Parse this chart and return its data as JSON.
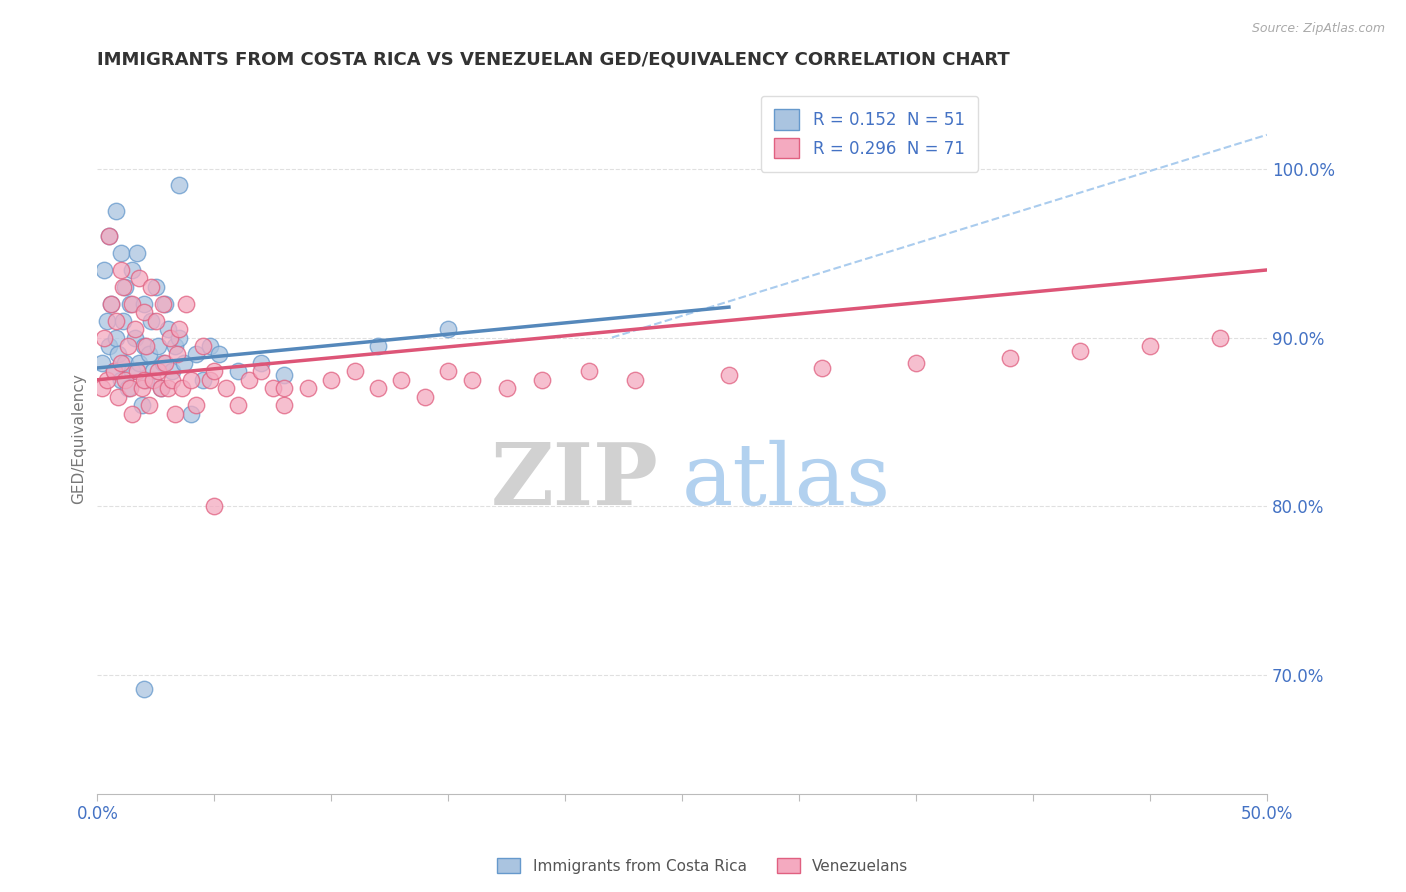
{
  "title": "IMMIGRANTS FROM COSTA RICA VS VENEZUELAN GED/EQUIVALENCY CORRELATION CHART",
  "source": "Source: ZipAtlas.com",
  "ylabel": "GED/Equivalency",
  "xlim": [
    0.0,
    0.5
  ],
  "ylim": [
    0.63,
    1.05
  ],
  "xticks": [
    0.0,
    0.05,
    0.1,
    0.15,
    0.2,
    0.25,
    0.3,
    0.35,
    0.4,
    0.45,
    0.5
  ],
  "yticks_right": [
    0.7,
    0.8,
    0.9,
    1.0
  ],
  "ytick_right_labels": [
    "70.0%",
    "80.0%",
    "90.0%",
    "100.0%"
  ],
  "legend_r_blue": "0.152",
  "legend_n_blue": "51",
  "legend_r_pink": "0.296",
  "legend_n_pink": "71",
  "blue_color": "#aac4e0",
  "pink_color": "#f4aac0",
  "blue_edge": "#6699cc",
  "pink_edge": "#e06080",
  "trend_blue": "#5588bb",
  "trend_pink": "#dd5577",
  "ref_line_color": "#aaccee",
  "watermark_zip": "ZIP",
  "watermark_atlas": "atlas",
  "blue_scatter_x": [
    0.002,
    0.003,
    0.004,
    0.005,
    0.005,
    0.006,
    0.007,
    0.008,
    0.008,
    0.009,
    0.01,
    0.01,
    0.011,
    0.012,
    0.012,
    0.013,
    0.014,
    0.015,
    0.015,
    0.016,
    0.017,
    0.018,
    0.019,
    0.02,
    0.02,
    0.021,
    0.022,
    0.023,
    0.024,
    0.025,
    0.026,
    0.027,
    0.028,
    0.029,
    0.03,
    0.032,
    0.033,
    0.035,
    0.037,
    0.04,
    0.042,
    0.045,
    0.048,
    0.052,
    0.06,
    0.07,
    0.08,
    0.12,
    0.15,
    0.02,
    0.035
  ],
  "blue_scatter_y": [
    0.885,
    0.94,
    0.91,
    0.96,
    0.895,
    0.92,
    0.88,
    0.975,
    0.9,
    0.89,
    0.95,
    0.875,
    0.91,
    0.93,
    0.885,
    0.87,
    0.92,
    0.94,
    0.88,
    0.9,
    0.95,
    0.885,
    0.86,
    0.895,
    0.92,
    0.875,
    0.89,
    0.91,
    0.88,
    0.93,
    0.895,
    0.87,
    0.885,
    0.92,
    0.905,
    0.88,
    0.895,
    0.9,
    0.885,
    0.855,
    0.89,
    0.875,
    0.895,
    0.89,
    0.88,
    0.885,
    0.878,
    0.895,
    0.905,
    0.692,
    0.99
  ],
  "pink_scatter_x": [
    0.002,
    0.003,
    0.004,
    0.005,
    0.006,
    0.007,
    0.008,
    0.009,
    0.01,
    0.01,
    0.011,
    0.012,
    0.013,
    0.014,
    0.015,
    0.015,
    0.016,
    0.017,
    0.018,
    0.019,
    0.02,
    0.02,
    0.021,
    0.022,
    0.023,
    0.024,
    0.025,
    0.026,
    0.027,
    0.028,
    0.029,
    0.03,
    0.031,
    0.032,
    0.033,
    0.034,
    0.035,
    0.036,
    0.038,
    0.04,
    0.042,
    0.045,
    0.048,
    0.05,
    0.055,
    0.06,
    0.065,
    0.07,
    0.075,
    0.08,
    0.09,
    0.1,
    0.11,
    0.12,
    0.13,
    0.14,
    0.15,
    0.16,
    0.175,
    0.19,
    0.21,
    0.23,
    0.27,
    0.31,
    0.35,
    0.39,
    0.42,
    0.45,
    0.48,
    0.05,
    0.08
  ],
  "pink_scatter_y": [
    0.87,
    0.9,
    0.875,
    0.96,
    0.92,
    0.88,
    0.91,
    0.865,
    0.94,
    0.885,
    0.93,
    0.875,
    0.895,
    0.87,
    0.92,
    0.855,
    0.905,
    0.88,
    0.935,
    0.87,
    0.915,
    0.875,
    0.895,
    0.86,
    0.93,
    0.875,
    0.91,
    0.88,
    0.87,
    0.92,
    0.885,
    0.87,
    0.9,
    0.875,
    0.855,
    0.89,
    0.905,
    0.87,
    0.92,
    0.875,
    0.86,
    0.895,
    0.875,
    0.88,
    0.87,
    0.86,
    0.875,
    0.88,
    0.87,
    0.86,
    0.87,
    0.875,
    0.88,
    0.87,
    0.875,
    0.865,
    0.88,
    0.875,
    0.87,
    0.875,
    0.88,
    0.875,
    0.878,
    0.882,
    0.885,
    0.888,
    0.892,
    0.895,
    0.9,
    0.8,
    0.87
  ],
  "blue_trend_x": [
    0.0,
    0.27
  ],
  "blue_trend_y": [
    0.882,
    0.918
  ],
  "pink_trend_x": [
    0.0,
    0.5
  ],
  "pink_trend_y": [
    0.875,
    0.94
  ],
  "ref_line_x": [
    0.22,
    0.5
  ],
  "ref_line_y": [
    0.9,
    1.02
  ]
}
